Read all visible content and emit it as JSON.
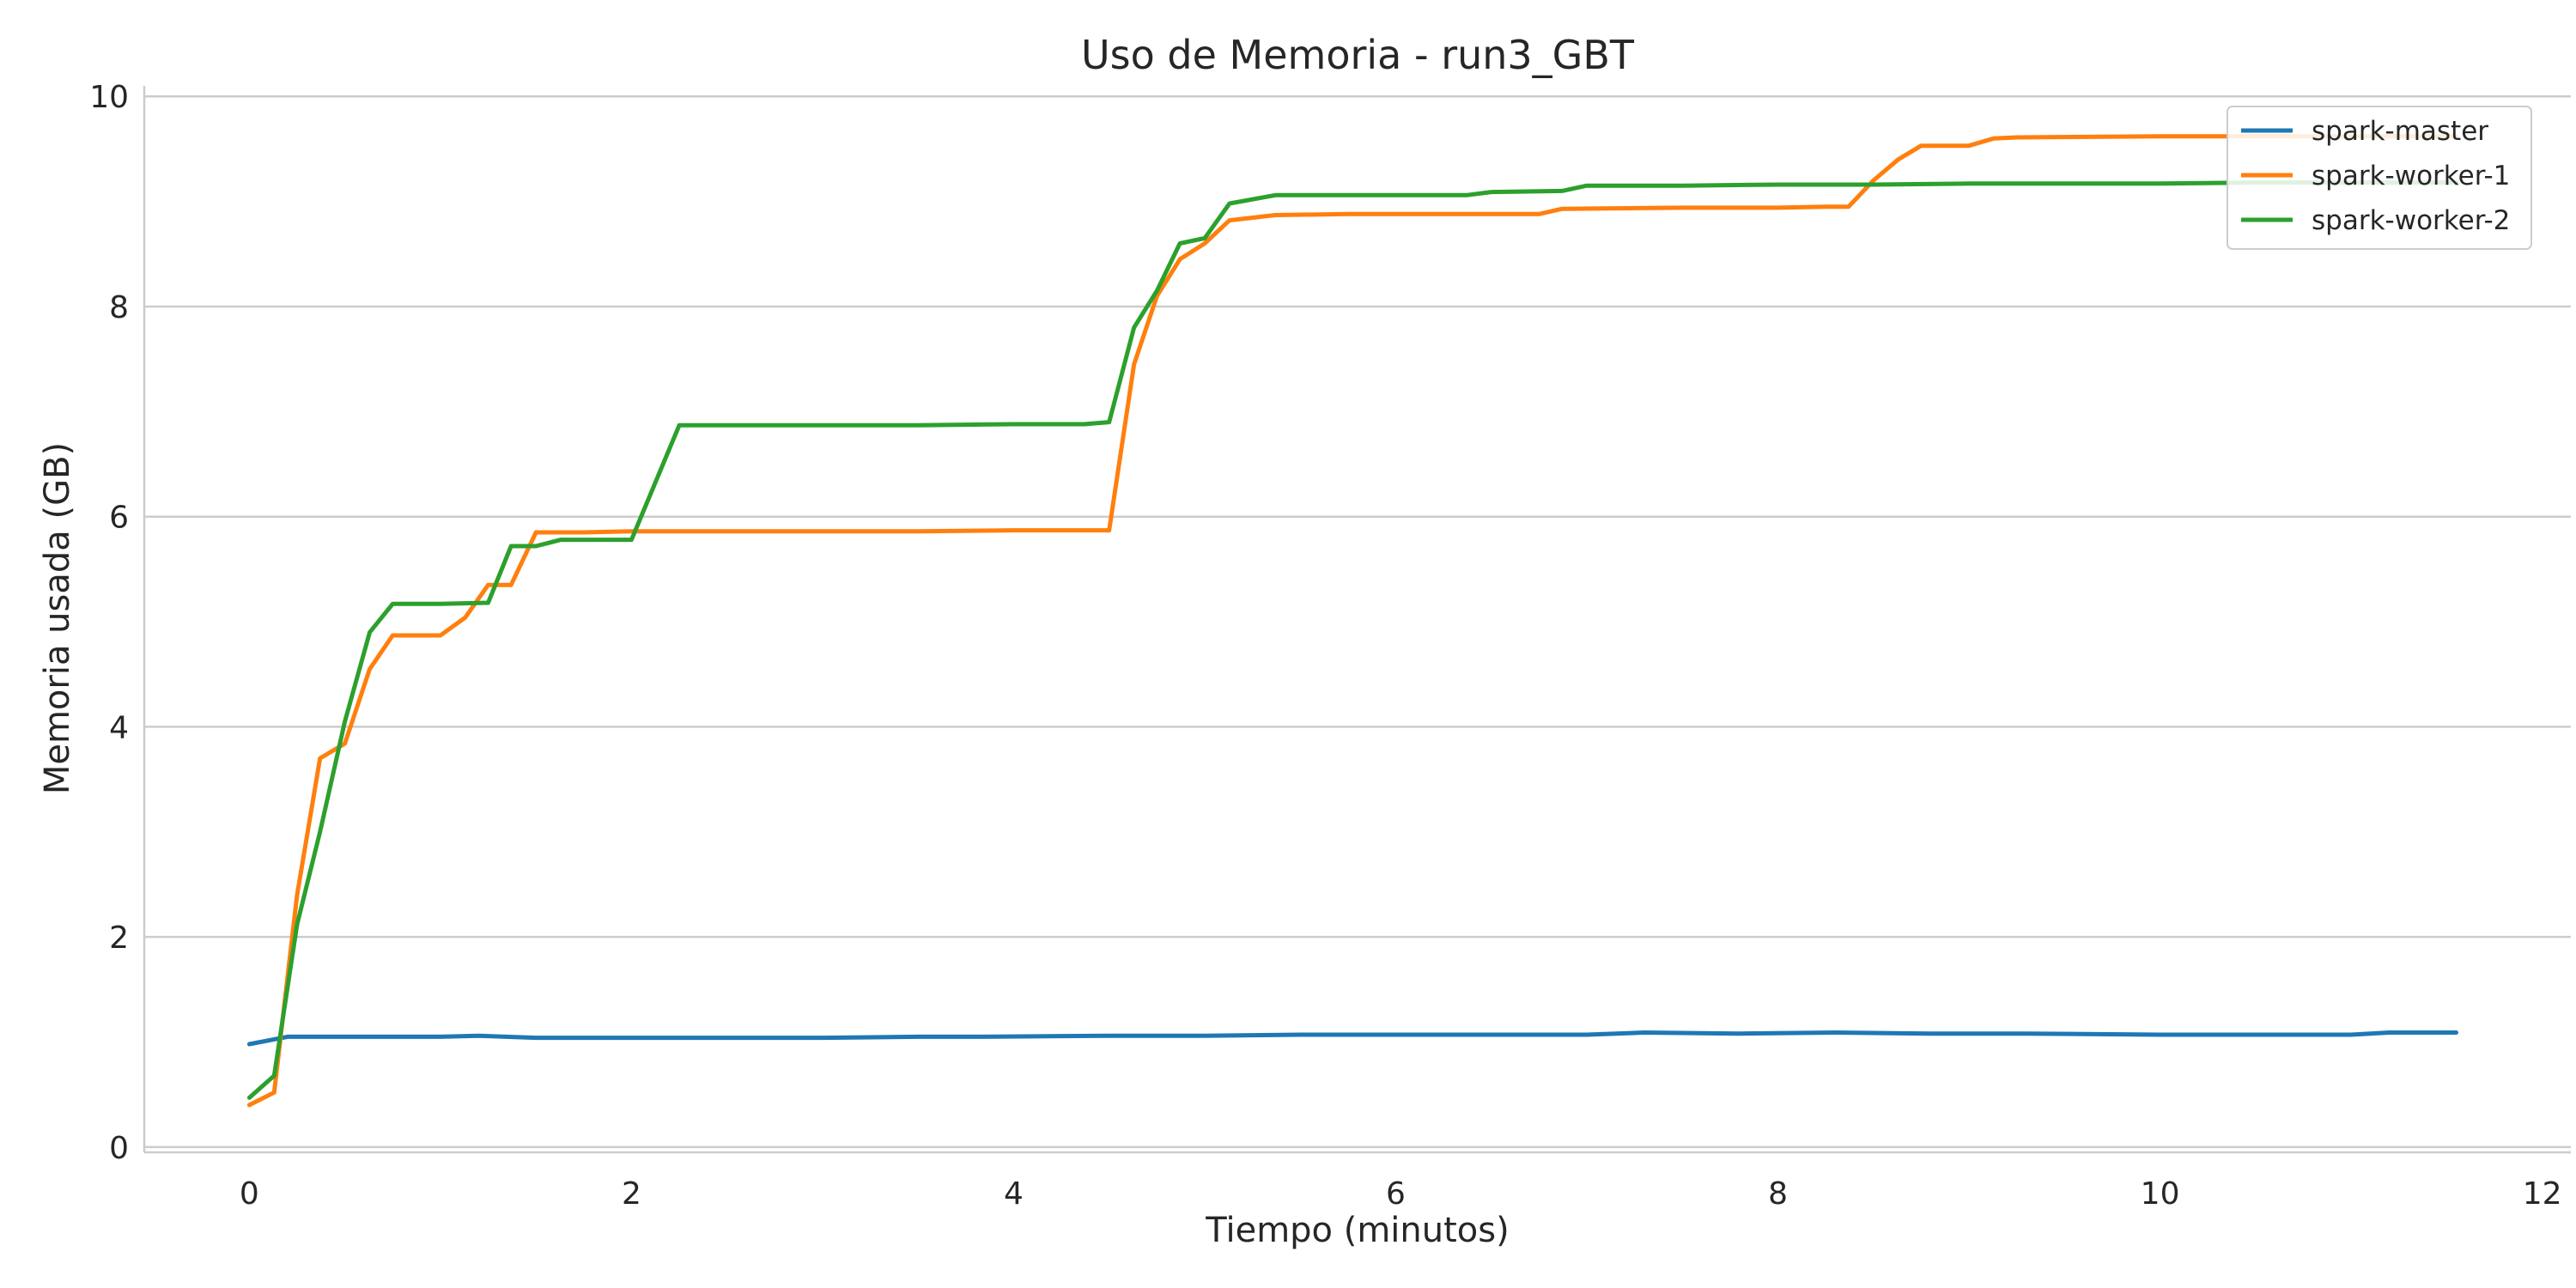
{
  "chart_data": {
    "type": "line",
    "title": "Uso de Memoria - run3_GBT",
    "xlabel": "Tiempo (minutos)",
    "ylabel": "Memoria usada (GB)",
    "xlim": [
      -0.55,
      12.15
    ],
    "ylim": [
      -0.05,
      10.1
    ],
    "xticks": [
      0,
      2,
      4,
      6,
      8,
      10,
      12
    ],
    "yticks": [
      0,
      2,
      4,
      6,
      8,
      10
    ],
    "grid": "y",
    "legend_position": "top-right",
    "series": [
      {
        "name": "spark-master",
        "color": "#1f77b4",
        "x": [
          0,
          0.2,
          0.6,
          1.0,
          1.2,
          1.5,
          2.0,
          3.0,
          3.5,
          3.8,
          4.5,
          5.0,
          5.5,
          6.0,
          6.5,
          7.0,
          7.3,
          7.8,
          8.3,
          8.8,
          9.3,
          10.0,
          11.0,
          11.2,
          11.55
        ],
        "y": [
          0.98,
          1.05,
          1.05,
          1.05,
          1.06,
          1.04,
          1.04,
          1.04,
          1.05,
          1.05,
          1.06,
          1.06,
          1.07,
          1.07,
          1.07,
          1.07,
          1.09,
          1.08,
          1.09,
          1.08,
          1.08,
          1.07,
          1.07,
          1.09,
          1.09
        ]
      },
      {
        "name": "spark-worker-1",
        "color": "#ff7f0e",
        "x": [
          0,
          0.13,
          0.25,
          0.37,
          0.5,
          0.63,
          0.75,
          1.0,
          1.13,
          1.25,
          1.37,
          1.5,
          1.75,
          2.0,
          2.5,
          3.0,
          3.37,
          3.5,
          4.0,
          4.5,
          4.63,
          4.75,
          4.87,
          5.0,
          5.13,
          5.37,
          5.75,
          6.0,
          6.5,
          6.75,
          6.87,
          7.5,
          8.0,
          8.25,
          8.37,
          8.5,
          8.63,
          8.75,
          9.0,
          9.13,
          9.25,
          10.0,
          10.5,
          11.0,
          11.55
        ],
        "y": [
          0.4,
          0.52,
          2.4,
          3.7,
          3.84,
          4.55,
          4.87,
          4.87,
          5.04,
          5.35,
          5.35,
          5.85,
          5.85,
          5.86,
          5.86,
          5.86,
          5.86,
          5.86,
          5.87,
          5.87,
          7.45,
          8.1,
          8.45,
          8.6,
          8.82,
          8.87,
          8.88,
          8.88,
          8.88,
          8.88,
          8.93,
          8.94,
          8.94,
          8.95,
          8.95,
          9.2,
          9.4,
          9.53,
          9.53,
          9.6,
          9.61,
          9.62,
          9.62,
          9.62,
          9.62
        ]
      },
      {
        "name": "spark-worker-2",
        "color": "#2ca02c",
        "x": [
          0,
          0.13,
          0.25,
          0.37,
          0.5,
          0.63,
          0.75,
          1.0,
          1.25,
          1.37,
          1.5,
          1.63,
          2.0,
          2.25,
          2.5,
          3.0,
          3.5,
          4.0,
          4.37,
          4.5,
          4.63,
          4.75,
          4.87,
          5.0,
          5.13,
          5.37,
          5.75,
          6.0,
          6.37,
          6.5,
          6.87,
          7.0,
          7.5,
          8.0,
          8.5,
          9.0,
          9.5,
          10.0,
          10.5,
          11.0,
          11.55
        ],
        "y": [
          0.47,
          0.68,
          2.12,
          3.0,
          4.05,
          4.9,
          5.17,
          5.17,
          5.18,
          5.72,
          5.72,
          5.78,
          5.78,
          6.87,
          6.87,
          6.87,
          6.87,
          6.88,
          6.88,
          6.9,
          7.8,
          8.15,
          8.6,
          8.65,
          8.98,
          9.06,
          9.06,
          9.06,
          9.06,
          9.09,
          9.1,
          9.15,
          9.15,
          9.16,
          9.16,
          9.17,
          9.17,
          9.17,
          9.18,
          9.18,
          9.18
        ]
      }
    ]
  }
}
